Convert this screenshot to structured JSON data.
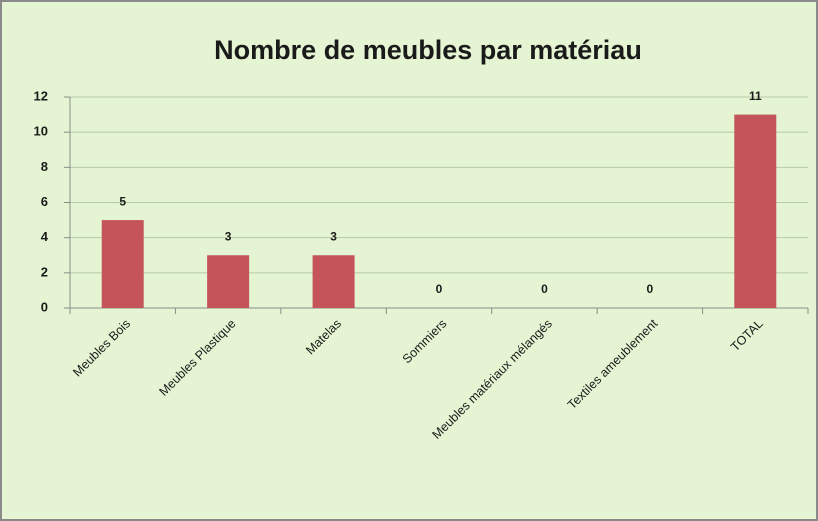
{
  "chart_data": {
    "type": "bar",
    "title": "Nombre de meubles par matériau",
    "categories": [
      "Meubles Bois",
      "Meubles Plastique",
      "Matelas",
      "Sommiers",
      "Meubles matériaux  mélangés",
      "Textiles ameublement",
      "TOTAL"
    ],
    "values": [
      5,
      3,
      3,
      0,
      0,
      0,
      11
    ],
    "color": "#c4545a",
    "ylim": [
      0,
      12
    ],
    "yticks": [
      0,
      2,
      4,
      6,
      8,
      10,
      12
    ],
    "grid": true
  }
}
